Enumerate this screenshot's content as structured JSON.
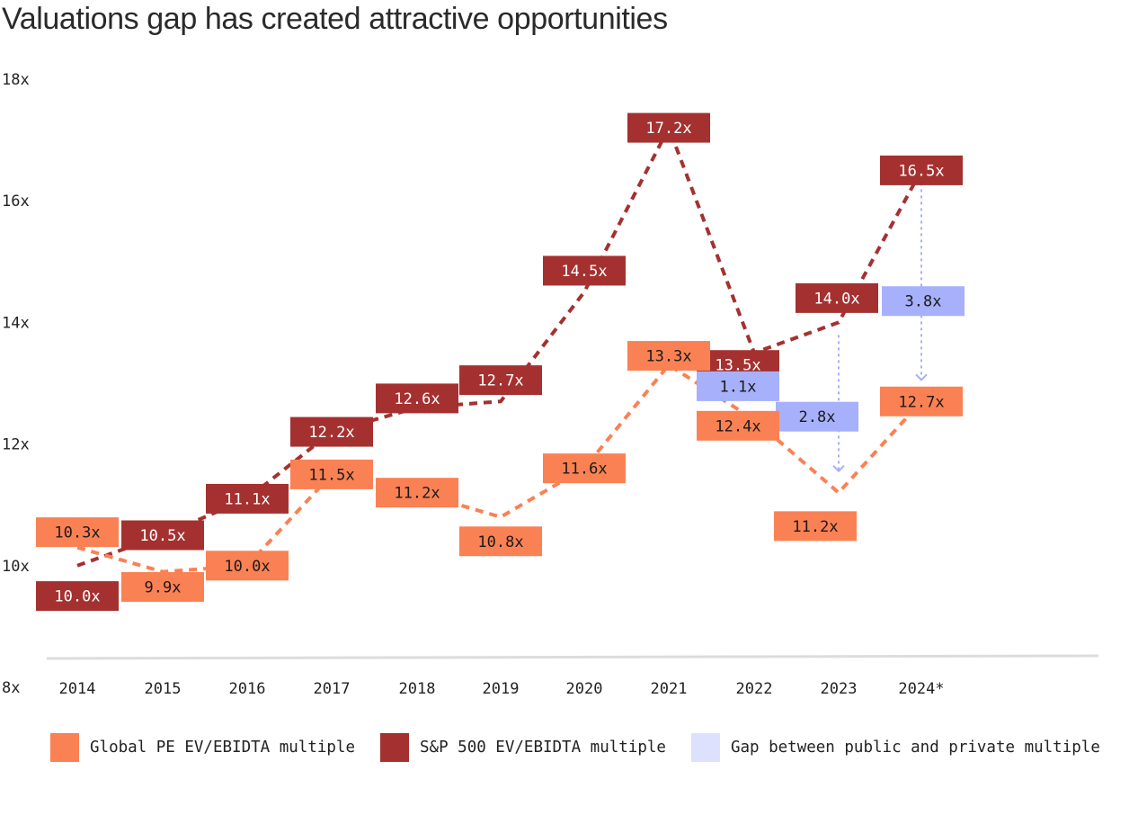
{
  "title": "Valuations gap has created attractive opportunities",
  "colors": {
    "pe": "#fa8153",
    "sp": "#a43130",
    "gap": "#a7b0fb",
    "gap_light": "#dde1fd",
    "baseline": "#dcdcdc",
    "text": "#222222"
  },
  "legend": [
    {
      "label": "Global PE EV/EBIDTA multiple",
      "color": "#fa8153"
    },
    {
      "label": "S&P 500 EV/EBIDTA multiple",
      "color": "#a43130"
    },
    {
      "label": "Gap between public and private multiple",
      "color": "#dde1fd"
    }
  ],
  "chart_data": {
    "type": "line",
    "categories": [
      "2014",
      "2015",
      "2016",
      "2017",
      "2018",
      "2019",
      "2020",
      "2021",
      "2022",
      "2023",
      "2024*"
    ],
    "y_ticks": [
      "8x",
      "10x",
      "12x",
      "14x",
      "16x",
      "18x"
    ],
    "ylim": [
      8,
      18
    ],
    "series": [
      {
        "name": "Global PE EV/EBIDTA multiple",
        "values": [
          10.3,
          9.9,
          10.0,
          11.5,
          11.2,
          10.8,
          11.6,
          13.3,
          12.4,
          11.2,
          12.7
        ],
        "labels": [
          "10.3x",
          "9.9x",
          "10.0x",
          "11.5x",
          "11.2x",
          "10.8x",
          "11.6x",
          "13.3x",
          "12.4x",
          "11.2x",
          "12.7x"
        ]
      },
      {
        "name": "S&P 500 EV/EBIDTA multiple",
        "values": [
          10.0,
          10.5,
          11.1,
          12.2,
          12.6,
          12.7,
          14.5,
          17.2,
          13.5,
          14.0,
          16.5
        ],
        "labels": [
          "10.0x",
          "10.5x",
          "11.1x",
          "12.2x",
          "12.6x",
          "12.7x",
          "14.5x",
          "17.2x",
          "13.5x",
          "14.0x",
          "16.5x"
        ]
      }
    ],
    "gaps": [
      {
        "category": "2022",
        "value": 1.1,
        "label": "1.1x"
      },
      {
        "category": "2023",
        "value": 2.8,
        "label": "2.8x"
      },
      {
        "category": "2024*",
        "value": 3.8,
        "label": "3.8x"
      }
    ]
  }
}
